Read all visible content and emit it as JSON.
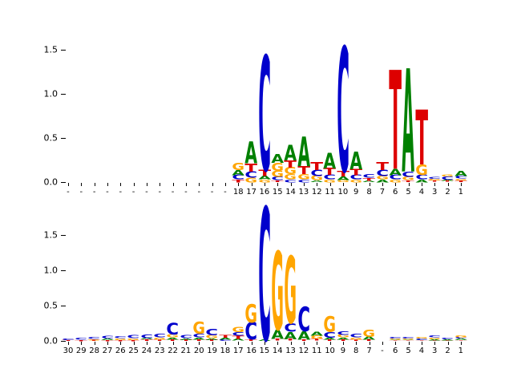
{
  "figure": {
    "title": "",
    "background": "#ffffff"
  },
  "chart_data": {
    "type": "bar",
    "subtype": "sequence-logo",
    "alphabet": [
      "A",
      "C",
      "G",
      "T"
    ],
    "colors": {
      "A": "#008000",
      "C": "#0000cc",
      "G": "#ffa500",
      "T": "#dd0000"
    },
    "grid": false,
    "legend": false,
    "panels": [
      {
        "id": "panel-top",
        "name": "top-logo-panel",
        "ylim": [
          0,
          1.64
        ],
        "yticks": [
          {
            "value": 0.0,
            "label": "0.0"
          },
          {
            "value": 0.5,
            "label": "0.5"
          },
          {
            "value": 1.0,
            "label": "1.0"
          },
          {
            "value": 1.5,
            "label": "1.5"
          }
        ],
        "positions": [
          {
            "label": "-",
            "stack": []
          },
          {
            "label": "-",
            "stack": []
          },
          {
            "label": "-",
            "stack": []
          },
          {
            "label": "-",
            "stack": []
          },
          {
            "label": "-",
            "stack": []
          },
          {
            "label": "-",
            "stack": []
          },
          {
            "label": "-",
            "stack": []
          },
          {
            "label": "-",
            "stack": []
          },
          {
            "label": "-",
            "stack": []
          },
          {
            "label": "-",
            "stack": []
          },
          {
            "label": "-",
            "stack": []
          },
          {
            "label": "-",
            "stack": []
          },
          {
            "label": "-",
            "stack": []
          },
          {
            "label": "18",
            "stack": [
              [
                "G",
                0.08
              ],
              [
                "A",
                0.06
              ],
              [
                "C",
                0.05
              ],
              [
                "T",
                0.03
              ]
            ]
          },
          {
            "label": "17",
            "stack": [
              [
                "A",
                0.25
              ],
              [
                "T",
                0.09
              ],
              [
                "C",
                0.07
              ],
              [
                "G",
                0.05
              ]
            ]
          },
          {
            "label": "16",
            "stack": [
              [
                "C",
                1.3
              ],
              [
                "T",
                0.07
              ],
              [
                "A",
                0.04
              ],
              [
                "G",
                0.03
              ]
            ]
          },
          {
            "label": "15",
            "stack": [
              [
                "A",
                0.1
              ],
              [
                "G",
                0.09
              ],
              [
                "G",
                0.07
              ],
              [
                "C",
                0.04
              ],
              [
                "T",
                0.02
              ]
            ]
          },
          {
            "label": "14",
            "stack": [
              [
                "A",
                0.18
              ],
              [
                "T",
                0.08
              ],
              [
                "G",
                0.08
              ],
              [
                "G",
                0.06
              ],
              [
                "C",
                0.03
              ]
            ]
          },
          {
            "label": "13",
            "stack": [
              [
                "A",
                0.34
              ],
              [
                "T",
                0.09
              ],
              [
                "G",
                0.06
              ],
              [
                "C",
                0.03
              ]
            ]
          },
          {
            "label": "12",
            "stack": [
              [
                "T",
                0.09
              ],
              [
                "C",
                0.07
              ],
              [
                "G",
                0.05
              ],
              [
                "A",
                0.02
              ]
            ]
          },
          {
            "label": "11",
            "stack": [
              [
                "A",
                0.18
              ],
              [
                "T",
                0.08
              ],
              [
                "C",
                0.05
              ],
              [
                "G",
                0.03
              ]
            ]
          },
          {
            "label": "10",
            "stack": [
              [
                "C",
                1.41
              ],
              [
                "T",
                0.065
              ],
              [
                "A",
                0.04
              ],
              [
                "G",
                0.025
              ]
            ]
          },
          {
            "label": "9",
            "stack": [
              [
                "A",
                0.2
              ],
              [
                "T",
                0.07
              ],
              [
                "C",
                0.05
              ],
              [
                "G",
                0.03
              ]
            ]
          },
          {
            "label": "8",
            "stack": [
              [
                "C",
                0.04
              ],
              [
                "T",
                0.03
              ],
              [
                "A",
                0.02
              ]
            ]
          },
          {
            "label": "7",
            "stack": [
              [
                "T",
                0.09
              ],
              [
                "C",
                0.07
              ],
              [
                "G",
                0.04
              ],
              [
                "A",
                0.03
              ]
            ]
          },
          {
            "label": "6",
            "stack": [
              [
                "T",
                1.12
              ],
              [
                "A",
                0.07
              ],
              [
                "C",
                0.05
              ],
              [
                "G",
                0.03
              ]
            ]
          },
          {
            "label": "5",
            "stack": [
              [
                "A",
                1.17
              ],
              [
                "C",
                0.06
              ],
              [
                "G",
                0.04
              ],
              [
                "T",
                0.02
              ]
            ]
          },
          {
            "label": "4",
            "stack": [
              [
                "T",
                0.62
              ],
              [
                "G",
                0.12
              ],
              [
                "C",
                0.05
              ],
              [
                "A",
                0.03
              ]
            ]
          },
          {
            "label": "3",
            "stack": [
              [
                "C",
                0.025
              ],
              [
                "G",
                0.02
              ],
              [
                "T",
                0.015
              ]
            ]
          },
          {
            "label": "2",
            "stack": [
              [
                "G",
                0.025
              ],
              [
                "C",
                0.035
              ],
              [
                "A",
                0.015
              ],
              [
                "T",
                0.015
              ]
            ]
          },
          {
            "label": "1",
            "stack": [
              [
                "A",
                0.06
              ],
              [
                "C",
                0.03
              ],
              [
                "G",
                0.02
              ],
              [
                "T",
                0.02
              ]
            ]
          }
        ]
      },
      {
        "id": "panel-bottom",
        "name": "bottom-logo-panel",
        "ylim": [
          0,
          1.95
        ],
        "yticks": [
          {
            "value": 0.0,
            "label": "0.0"
          },
          {
            "value": 0.5,
            "label": "0.5"
          },
          {
            "value": 1.0,
            "label": "1.0"
          },
          {
            "value": 1.5,
            "label": "1.5"
          }
        ],
        "positions": [
          {
            "label": "30",
            "stack": [
              [
                "C",
                0.025
              ],
              [
                "T",
                0.012
              ]
            ]
          },
          {
            "label": "29",
            "stack": [
              [
                "C",
                0.03
              ],
              [
                "T",
                0.015
              ]
            ]
          },
          {
            "label": "28",
            "stack": [
              [
                "C",
                0.03
              ],
              [
                "G",
                0.015
              ],
              [
                "T",
                0.012
              ]
            ]
          },
          {
            "label": "27",
            "stack": [
              [
                "C",
                0.035
              ],
              [
                "A",
                0.02
              ],
              [
                "T",
                0.015
              ]
            ]
          },
          {
            "label": "26",
            "stack": [
              [
                "C",
                0.03
              ],
              [
                "G",
                0.025
              ],
              [
                "T",
                0.015
              ]
            ]
          },
          {
            "label": "25",
            "stack": [
              [
                "C",
                0.04
              ],
              [
                "G",
                0.02
              ],
              [
                "T",
                0.015
              ]
            ]
          },
          {
            "label": "24",
            "stack": [
              [
                "C",
                0.05
              ],
              [
                "A",
                0.025
              ],
              [
                "T",
                0.02
              ]
            ]
          },
          {
            "label": "23",
            "stack": [
              [
                "C",
                0.05
              ],
              [
                "G",
                0.03
              ],
              [
                "T",
                0.02
              ]
            ]
          },
          {
            "label": "22",
            "stack": [
              [
                "C",
                0.16
              ],
              [
                "G",
                0.04
              ],
              [
                "A",
                0.03
              ],
              [
                "T",
                0.02
              ]
            ]
          },
          {
            "label": "21",
            "stack": [
              [
                "C",
                0.04
              ],
              [
                "A",
                0.02
              ],
              [
                "T",
                0.02
              ]
            ]
          },
          {
            "label": "20",
            "stack": [
              [
                "G",
                0.17
              ],
              [
                "C",
                0.05
              ],
              [
                "A",
                0.03
              ],
              [
                "T",
                0.02
              ]
            ]
          },
          {
            "label": "19",
            "stack": [
              [
                "C",
                0.09
              ],
              [
                "G",
                0.04
              ],
              [
                "A",
                0.02
              ],
              [
                "T",
                0.02
              ]
            ]
          },
          {
            "label": "18",
            "stack": [
              [
                "T",
                0.035
              ],
              [
                "A",
                0.03
              ],
              [
                "C",
                0.02
              ]
            ]
          },
          {
            "label": "17",
            "stack": [
              [
                "G",
                0.07
              ],
              [
                "C",
                0.05
              ],
              [
                "T",
                0.04
              ],
              [
                "A",
                0.03
              ]
            ]
          },
          {
            "label": "16",
            "stack": [
              [
                "G",
                0.26
              ],
              [
                "C",
                0.24
              ],
              [
                "T",
                0.02
              ]
            ]
          },
          {
            "label": "15",
            "stack": [
              [
                "C",
                1.88
              ],
              [
                "A",
                0.02
              ]
            ]
          },
          {
            "label": "14",
            "stack": [
              [
                "G",
                1.11
              ],
              [
                "A",
                0.13
              ],
              [
                "T",
                0.03
              ]
            ]
          },
          {
            "label": "13",
            "stack": [
              [
                "G",
                0.95
              ],
              [
                "C",
                0.12
              ],
              [
                "A",
                0.1
              ],
              [
                "T",
                0.03
              ]
            ]
          },
          {
            "label": "12",
            "stack": [
              [
                "C",
                0.35
              ],
              [
                "A",
                0.12
              ],
              [
                "T",
                0.02
              ]
            ]
          },
          {
            "label": "11",
            "stack": [
              [
                "A",
                0.06
              ],
              [
                "G",
                0.05
              ],
              [
                "T",
                0.03
              ]
            ]
          },
          {
            "label": "10",
            "stack": [
              [
                "G",
                0.22
              ],
              [
                "C",
                0.08
              ],
              [
                "A",
                0.03
              ],
              [
                "T",
                0.02
              ]
            ]
          },
          {
            "label": "9",
            "stack": [
              [
                "C",
                0.05
              ],
              [
                "G",
                0.04
              ],
              [
                "A",
                0.03
              ],
              [
                "T",
                0.02
              ]
            ]
          },
          {
            "label": "8",
            "stack": [
              [
                "C",
                0.05
              ],
              [
                "G",
                0.03
              ],
              [
                "T",
                0.02
              ]
            ]
          },
          {
            "label": "7",
            "stack": [
              [
                "G",
                0.1
              ],
              [
                "A",
                0.04
              ],
              [
                "T",
                0.02
              ]
            ]
          },
          {
            "label": "-",
            "stack": []
          },
          {
            "label": "6",
            "stack": [
              [
                "C",
                0.025
              ],
              [
                "G",
                0.015
              ],
              [
                "A",
                0.01
              ],
              [
                "T",
                0.01
              ]
            ]
          },
          {
            "label": "5",
            "stack": [
              [
                "C",
                0.02
              ],
              [
                "G",
                0.015
              ],
              [
                "A",
                0.01
              ],
              [
                "T",
                0.01
              ]
            ]
          },
          {
            "label": "4",
            "stack": [
              [
                "G",
                0.02
              ],
              [
                "C",
                0.02
              ],
              [
                "A",
                0.01
              ],
              [
                "T",
                0.01
              ]
            ]
          },
          {
            "label": "3",
            "stack": [
              [
                "C",
                0.03
              ],
              [
                "G",
                0.02
              ],
              [
                "A",
                0.015
              ],
              [
                "T",
                0.01
              ]
            ]
          },
          {
            "label": "2",
            "stack": [
              [
                "C",
                0.02
              ],
              [
                "A",
                0.015
              ],
              [
                "T",
                0.01
              ]
            ]
          },
          {
            "label": "1",
            "stack": [
              [
                "G",
                0.03
              ],
              [
                "C",
                0.025
              ],
              [
                "A",
                0.02
              ],
              [
                "T",
                0.01
              ]
            ]
          }
        ]
      }
    ]
  }
}
